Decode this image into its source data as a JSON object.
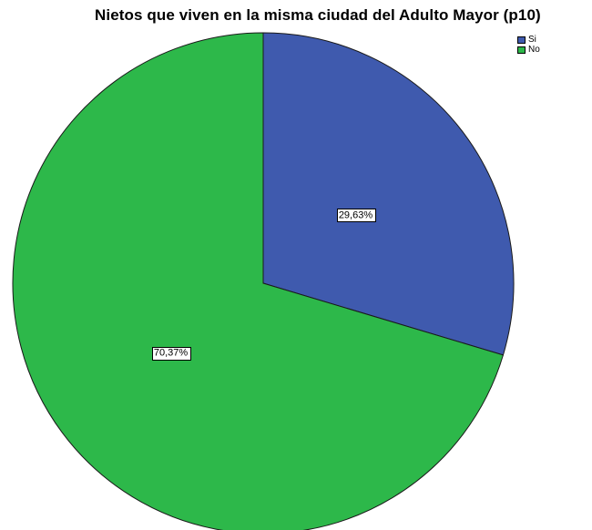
{
  "chart_data": {
    "type": "pie",
    "title": "Nietos que viven en la misma ciudad del Adulto Mayor (p10)",
    "slices": [
      {
        "name": "Si",
        "value": 29.63,
        "label": "29,63%",
        "color": "#3f5aae"
      },
      {
        "name": "No",
        "value": 70.37,
        "label": "70,37%",
        "color": "#2db84a"
      }
    ],
    "start_angle": "12 o'clock",
    "direction": "clockwise",
    "legend_position": "top-right"
  }
}
